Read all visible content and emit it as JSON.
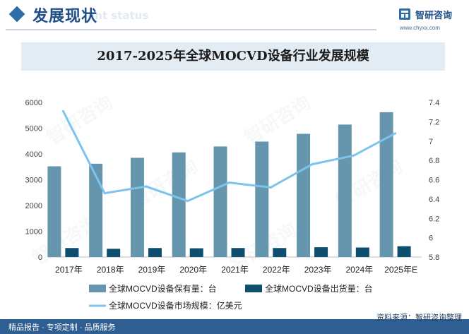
{
  "header": {
    "title": "发展现状",
    "subtitle": "ent status",
    "brand_name": "智研咨询",
    "brand_url": "www.chyxx.com"
  },
  "watermark": "智研咨询",
  "footer": {
    "left": "精品报告 · 专项定制 · 品质服务",
    "source": "资料来源：智研咨询整理"
  },
  "colors": {
    "bar_holding": "#6596ad",
    "bar_shipment": "#0f4e6f",
    "line": "#7cc3ee",
    "header_accent": "#2f6da8",
    "footer_bg": "#2f5f92"
  },
  "chart_data": {
    "type": "bar",
    "title": "2017-2025年全球MOCVD设备行业发展规模",
    "categories": [
      "2017年",
      "2018年",
      "2019年",
      "2020年",
      "2021年",
      "2022年",
      "2023年",
      "2024年",
      "2025年E"
    ],
    "series": [
      {
        "name": "全球MOCVD设备保有量：台",
        "type": "bar",
        "axis": "left",
        "values": [
          3520,
          3620,
          3850,
          4060,
          4290,
          4480,
          4780,
          5140,
          5620
        ]
      },
      {
        "name": "全球MOCVD设备出货量：台",
        "type": "bar",
        "axis": "left",
        "values": [
          350,
          320,
          350,
          340,
          350,
          350,
          380,
          370,
          420
        ]
      },
      {
        "name": "全球MOCVD设备市场规模：亿美元",
        "type": "line",
        "axis": "right",
        "values": [
          7.31,
          6.46,
          6.53,
          6.38,
          6.57,
          6.52,
          6.76,
          6.85,
          7.08
        ]
      }
    ],
    "y_left": {
      "min": 0,
      "max": 6000,
      "ticks": [
        "0",
        "1000",
        "2000",
        "3000",
        "4000",
        "5000",
        "6000"
      ]
    },
    "y_right": {
      "min": 5.8,
      "max": 7.4,
      "ticks": [
        "5.8",
        "6",
        "6.2",
        "6.4",
        "6.6",
        "6.8",
        "7",
        "7.2",
        "7.4"
      ]
    },
    "grid": false,
    "legend_position": "bottom"
  }
}
